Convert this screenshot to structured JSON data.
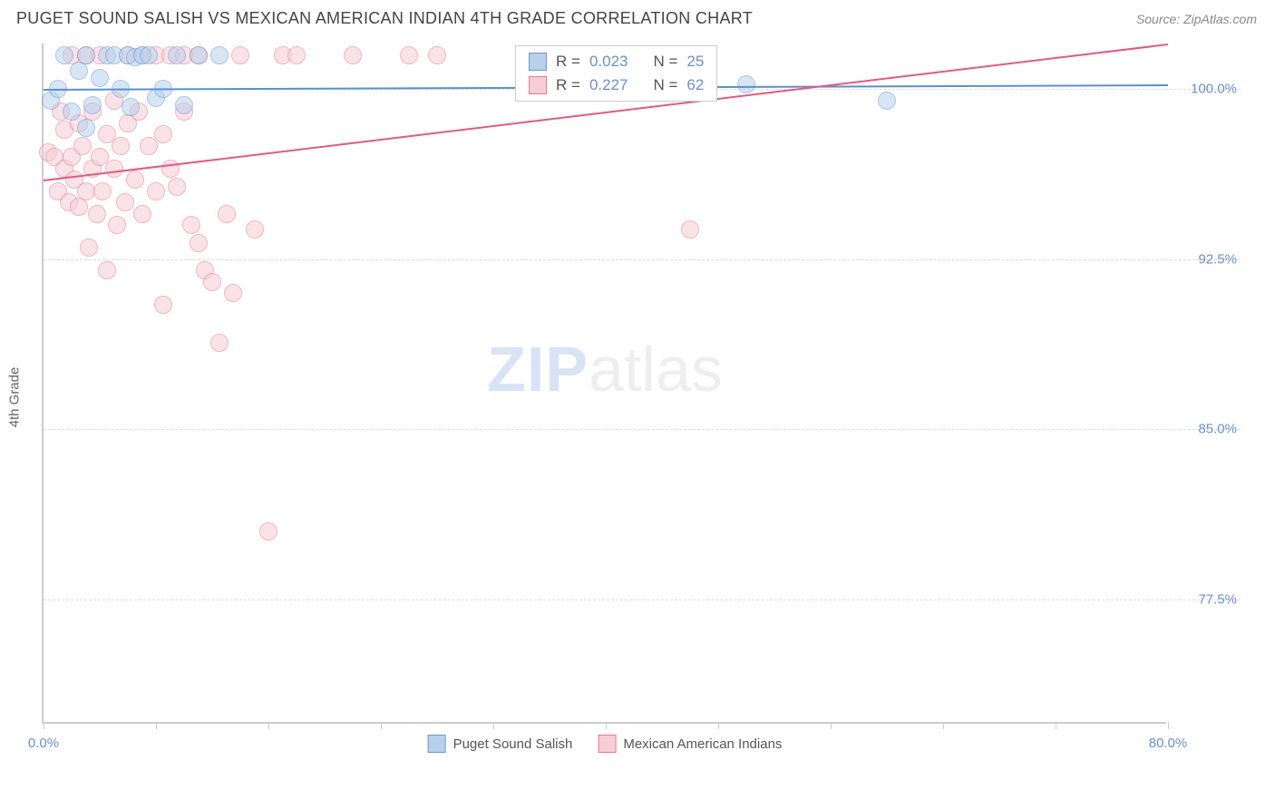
{
  "header": {
    "title": "PUGET SOUND SALISH VS MEXICAN AMERICAN INDIAN 4TH GRADE CORRELATION CHART",
    "source": "Source: ZipAtlas.com"
  },
  "watermark": {
    "part1": "ZIP",
    "part2": "atlas"
  },
  "chart": {
    "type": "scatter",
    "yaxis_label": "4th Grade",
    "xlim": [
      0,
      80
    ],
    "ylim": [
      72,
      102
    ],
    "xticks": [
      0,
      8,
      16,
      24,
      32,
      40,
      48,
      56,
      64,
      72,
      80
    ],
    "xtick_labels": {
      "0": "0.0%",
      "80": "80.0%"
    },
    "yticks": [
      77.5,
      85.0,
      92.5,
      100.0
    ],
    "ytick_labels": [
      "77.5%",
      "85.0%",
      "92.5%",
      "100.0%"
    ],
    "grid_color": "#dddddd",
    "axis_color": "#cccccc",
    "tick_label_color": "#6b8fd4",
    "background_color": "#ffffff",
    "point_radius": 10,
    "point_opacity": 0.55,
    "series": [
      {
        "name": "Puget Sound Salish",
        "fill": "#b8d0ec",
        "stroke": "#6b9bd1",
        "r_label": "R =",
        "r_value": "0.023",
        "n_label": "N =",
        "n_value": "25",
        "trend": {
          "x1": 0,
          "y1": 100.0,
          "x2": 80,
          "y2": 100.2,
          "color": "#5b8fd1",
          "width": 2
        },
        "points": [
          [
            0.5,
            99.5
          ],
          [
            1.0,
            100.0
          ],
          [
            1.5,
            101.5
          ],
          [
            2.0,
            99.0
          ],
          [
            2.5,
            100.8
          ],
          [
            3.0,
            98.3
          ],
          [
            3.0,
            101.5
          ],
          [
            3.5,
            99.3
          ],
          [
            4.0,
            100.5
          ],
          [
            4.5,
            101.5
          ],
          [
            5.0,
            101.5
          ],
          [
            5.5,
            100.0
          ],
          [
            6.0,
            101.5
          ],
          [
            6.2,
            99.2
          ],
          [
            6.5,
            101.4
          ],
          [
            7.0,
            101.5
          ],
          [
            7.5,
            101.5
          ],
          [
            8.0,
            99.6
          ],
          [
            8.5,
            100.0
          ],
          [
            9.5,
            101.5
          ],
          [
            10.0,
            99.3
          ],
          [
            11.0,
            101.5
          ],
          [
            12.5,
            101.5
          ],
          [
            50.0,
            100.2
          ],
          [
            60.0,
            99.5
          ]
        ]
      },
      {
        "name": "Mexican American Indians",
        "fill": "#f7cdd7",
        "stroke": "#e67a95",
        "r_label": "R =",
        "r_value": "0.227",
        "n_label": "N =",
        "n_value": "62",
        "trend": {
          "x1": 0,
          "y1": 96.0,
          "x2": 80,
          "y2": 102.0,
          "color": "#e15b80",
          "width": 2
        },
        "points": [
          [
            0.3,
            97.2
          ],
          [
            0.8,
            97.0
          ],
          [
            1.0,
            95.5
          ],
          [
            1.2,
            99.0
          ],
          [
            1.5,
            96.5
          ],
          [
            1.5,
            98.2
          ],
          [
            1.8,
            95.0
          ],
          [
            2.0,
            97.0
          ],
          [
            2.0,
            101.5
          ],
          [
            2.2,
            96.0
          ],
          [
            2.5,
            98.5
          ],
          [
            2.5,
            94.8
          ],
          [
            2.8,
            97.5
          ],
          [
            3.0,
            95.5
          ],
          [
            3.0,
            101.5
          ],
          [
            3.2,
            93.0
          ],
          [
            3.5,
            96.5
          ],
          [
            3.5,
            99.0
          ],
          [
            3.8,
            94.5
          ],
          [
            4.0,
            97.0
          ],
          [
            4.0,
            101.5
          ],
          [
            4.2,
            95.5
          ],
          [
            4.5,
            98.0
          ],
          [
            4.5,
            92.0
          ],
          [
            5.0,
            96.5
          ],
          [
            5.0,
            99.5
          ],
          [
            5.2,
            94.0
          ],
          [
            5.5,
            97.5
          ],
          [
            5.8,
            95.0
          ],
          [
            6.0,
            98.5
          ],
          [
            6.0,
            101.5
          ],
          [
            6.5,
            96.0
          ],
          [
            6.8,
            99.0
          ],
          [
            7.0,
            94.5
          ],
          [
            7.0,
            101.5
          ],
          [
            7.5,
            97.5
          ],
          [
            8.0,
            95.5
          ],
          [
            8.0,
            101.5
          ],
          [
            8.5,
            98.0
          ],
          [
            8.5,
            90.5
          ],
          [
            9.0,
            96.5
          ],
          [
            9.0,
            101.5
          ],
          [
            9.5,
            95.7
          ],
          [
            10.0,
            99.0
          ],
          [
            10.0,
            101.5
          ],
          [
            10.5,
            94.0
          ],
          [
            11.0,
            93.2
          ],
          [
            11.0,
            101.5
          ],
          [
            11.5,
            92.0
          ],
          [
            12.0,
            91.5
          ],
          [
            12.5,
            88.8
          ],
          [
            13.0,
            94.5
          ],
          [
            13.5,
            91.0
          ],
          [
            14.0,
            101.5
          ],
          [
            15.0,
            93.8
          ],
          [
            16.0,
            80.5
          ],
          [
            17.0,
            101.5
          ],
          [
            18.0,
            101.5
          ],
          [
            22.0,
            101.5
          ],
          [
            26.0,
            101.5
          ],
          [
            28.0,
            101.5
          ],
          [
            46.0,
            93.8
          ]
        ]
      }
    ],
    "legend": [
      {
        "label": "Puget Sound Salish",
        "fill": "#b8d0ec",
        "stroke": "#6b9bd1"
      },
      {
        "label": "Mexican American Indians",
        "fill": "#f7cdd7",
        "stroke": "#e67a95"
      }
    ]
  }
}
